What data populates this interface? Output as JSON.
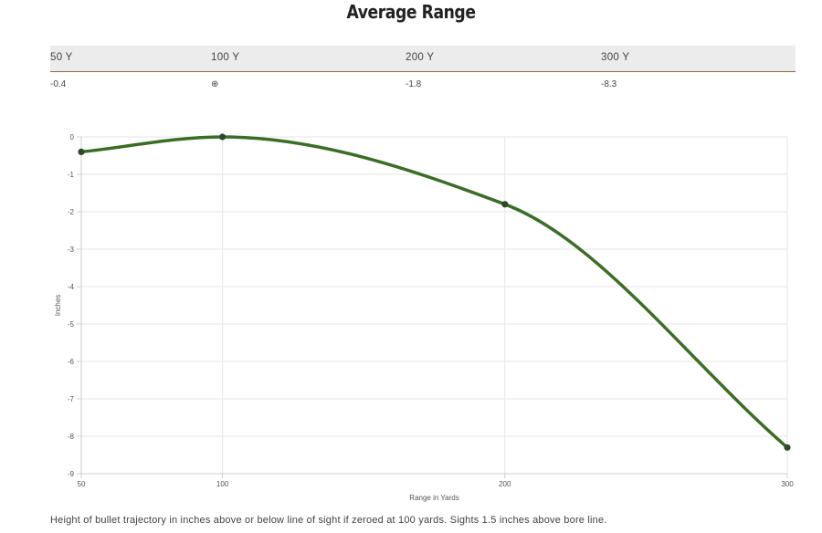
{
  "title": "Average Range",
  "range_table": {
    "headers": [
      "50 Y",
      "100 Y",
      "200 Y",
      "300 Y"
    ],
    "values": [
      "-0.4",
      "⊕",
      "-1.8",
      "-8.3"
    ]
  },
  "chart_data": {
    "type": "line",
    "x": [
      50,
      100,
      200,
      300
    ],
    "series": [
      {
        "values": [
          -0.4,
          0,
          -1.8,
          -8.3
        ],
        "color": "#3a6e25"
      }
    ],
    "xlabel": "Range in Yards",
    "ylabel": "Inches",
    "xticks": [
      "50",
      "100",
      "200",
      "300"
    ],
    "yticks": [
      "0",
      "-1",
      "-2",
      "-3",
      "-4",
      "-5",
      "-6",
      "-7",
      "-8",
      "-9"
    ],
    "xlim": [
      50,
      300
    ],
    "ylim": [
      -9,
      0
    ],
    "grid": true
  },
  "footnote": "Height of bullet trajectory in inches above or below line of sight if zeroed at 100 yards. Sights 1.5 inches above bore line."
}
